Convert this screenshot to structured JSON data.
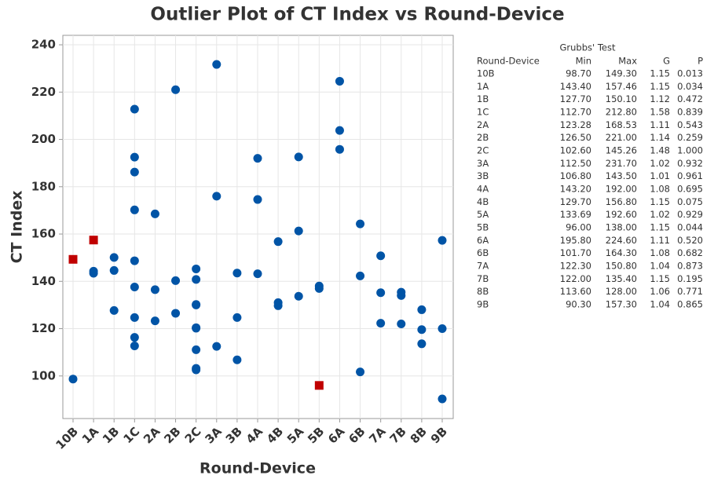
{
  "chart_data": {
    "type": "scatter",
    "title": "Outlier Plot of CT Index vs Round-Device",
    "x_label": "Round-Device",
    "y_label": "CT Index",
    "categories": [
      "10B",
      "1A",
      "1B",
      "1C",
      "2A",
      "2B",
      "2C",
      "3A",
      "3B",
      "4A",
      "4B",
      "5A",
      "5B",
      "6A",
      "6B",
      "7A",
      "7B",
      "8B",
      "9B"
    ],
    "ylim": [
      82,
      244
    ],
    "yticks": [
      100,
      120,
      140,
      160,
      180,
      200,
      220,
      240
    ],
    "grid": true,
    "series": [
      {
        "color": "#0054a6",
        "marker": "circle",
        "x": [
          "10B",
          "1A",
          "1A",
          "1B",
          "1B",
          "1B",
          "1C",
          "1C",
          "1C",
          "1C",
          "1C",
          "1C",
          "1C",
          "1C",
          "1C",
          "2A",
          "2A",
          "2A",
          "2B",
          "2B",
          "2B",
          "2C",
          "2C",
          "2C",
          "2C",
          "2C",
          "2C",
          "2C",
          "2C",
          "2C",
          "3A",
          "3A",
          "3A",
          "3B",
          "3B",
          "3B",
          "4A",
          "4A",
          "4A",
          "4B",
          "4B",
          "4B",
          "5A",
          "5A",
          "5A",
          "5B",
          "5B",
          "6A",
          "6A",
          "6A",
          "6B",
          "6B",
          "6B",
          "7A",
          "7A",
          "7A",
          "7B",
          "7B",
          "7B",
          "8B",
          "8B",
          "8B",
          "9B",
          "9B",
          "9B"
        ],
        "values": [
          98.7,
          143.4,
          144.3,
          150.1,
          144.6,
          127.7,
          212.8,
          192.5,
          186.2,
          170.2,
          148.7,
          137.6,
          124.7,
          116.3,
          112.7,
          168.53,
          136.5,
          123.28,
          221.0,
          140.3,
          126.5,
          145.26,
          140.8,
          130.2,
          130.0,
          120.4,
          120.2,
          111.1,
          103.2,
          102.6,
          231.7,
          176.0,
          112.5,
          143.5,
          124.7,
          106.8,
          192.0,
          174.6,
          143.2,
          156.8,
          131.0,
          129.7,
          192.6,
          161.3,
          133.69,
          138.0,
          137.0,
          224.6,
          203.8,
          195.8,
          164.3,
          142.3,
          101.7,
          150.8,
          135.2,
          122.3,
          135.4,
          134.0,
          122.0,
          128.0,
          119.6,
          113.6,
          157.3,
          120.0,
          90.3
        ]
      },
      {
        "color": "#c00000",
        "marker": "square",
        "x": [
          "10B",
          "1A",
          "5B"
        ],
        "values": [
          149.3,
          157.46,
          96.0
        ]
      }
    ]
  },
  "table": {
    "title": "Grubbs' Test",
    "columns": [
      "Round-Device",
      "Min",
      "Max",
      "G",
      "P"
    ],
    "rows": [
      [
        "10B",
        "98.70",
        "149.30",
        "1.15",
        "0.013"
      ],
      [
        "1A",
        "143.40",
        "157.46",
        "1.15",
        "0.034"
      ],
      [
        "1B",
        "127.70",
        "150.10",
        "1.12",
        "0.472"
      ],
      [
        "1C",
        "112.70",
        "212.80",
        "1.58",
        "0.839"
      ],
      [
        "2A",
        "123.28",
        "168.53",
        "1.11",
        "0.543"
      ],
      [
        "2B",
        "126.50",
        "221.00",
        "1.14",
        "0.259"
      ],
      [
        "2C",
        "102.60",
        "145.26",
        "1.48",
        "1.000"
      ],
      [
        "3A",
        "112.50",
        "231.70",
        "1.02",
        "0.932"
      ],
      [
        "3B",
        "106.80",
        "143.50",
        "1.01",
        "0.961"
      ],
      [
        "4A",
        "143.20",
        "192.00",
        "1.08",
        "0.695"
      ],
      [
        "4B",
        "129.70",
        "156.80",
        "1.15",
        "0.075"
      ],
      [
        "5A",
        "133.69",
        "192.60",
        "1.02",
        "0.929"
      ],
      [
        "5B",
        "96.00",
        "138.00",
        "1.15",
        "0.044"
      ],
      [
        "6A",
        "195.80",
        "224.60",
        "1.11",
        "0.520"
      ],
      [
        "6B",
        "101.70",
        "164.30",
        "1.08",
        "0.682"
      ],
      [
        "7A",
        "122.30",
        "150.80",
        "1.04",
        "0.873"
      ],
      [
        "7B",
        "122.00",
        "135.40",
        "1.15",
        "0.195"
      ],
      [
        "8B",
        "113.60",
        "128.00",
        "1.06",
        "0.771"
      ],
      [
        "9B",
        "90.30",
        "157.30",
        "1.04",
        "0.865"
      ]
    ]
  }
}
